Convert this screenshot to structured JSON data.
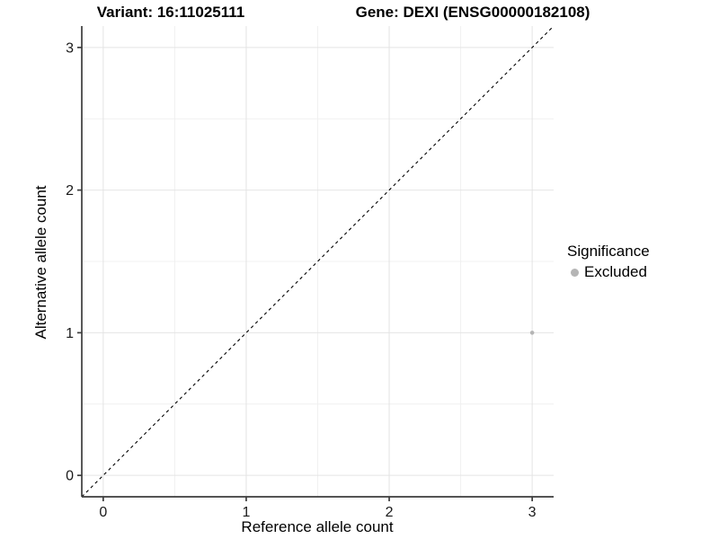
{
  "titles": {
    "variant": "Variant: 16:11025111",
    "gene": "Gene: DEXI (ENSG00000182108)"
  },
  "chart_data": {
    "type": "scatter",
    "xlabel": "Reference allele count",
    "ylabel": "Alternative allele count",
    "xlim": [
      -0.15,
      3.15
    ],
    "ylim": [
      -0.15,
      3.15
    ],
    "x_ticks": [
      0,
      1,
      2,
      3
    ],
    "y_ticks": [
      0,
      1,
      2,
      3
    ],
    "minor_ticks": [
      0.5,
      1.5,
      2.5
    ],
    "grid": true,
    "points": [
      {
        "x": 3,
        "y": 1,
        "significance": "Excluded"
      }
    ],
    "reference_line": {
      "slope": 1,
      "intercept": 0,
      "style": "dashed"
    },
    "legend": {
      "title": "Significance",
      "position": "right",
      "entries": [
        {
          "label": "Excluded",
          "color": "#b5b5b5",
          "marker": "circle"
        }
      ]
    }
  },
  "style": {
    "background": "#ffffff",
    "grid_major": "#e4e4e4",
    "grid_minor": "#f0f0f0",
    "axis_line": "#3c3c3c",
    "tick_label_color": "#1a1a1a",
    "title_color": "#000000",
    "point_color": "#b5b5b5",
    "ref_line_color": "#000000"
  }
}
